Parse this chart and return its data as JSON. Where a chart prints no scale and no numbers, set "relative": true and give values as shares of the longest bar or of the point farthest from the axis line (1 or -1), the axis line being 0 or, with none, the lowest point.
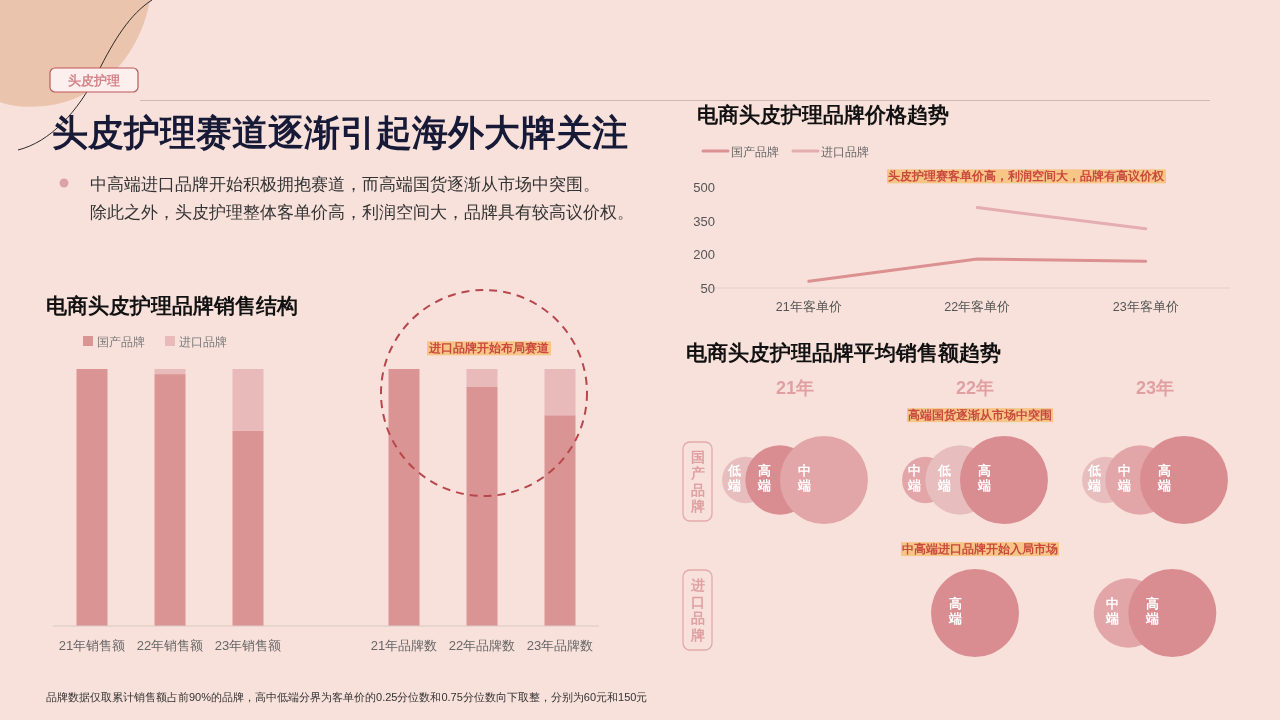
{
  "chart_data": [
    {
      "type": "other",
      "title": "头皮护理赛道逐渐引起海外大牌关注",
      "annotations": [
        "头皮护理",
        "中高端进口品牌开始积极拥抱赛道，而高端国货逐渐从市场中突围。",
        "除此之外，头皮护理整体客单价高，利润空间大，品牌具有较高议价权。",
        "品牌数据仅取累计销售额占前90%的品牌，高中低端分界为客单价的0.25分位数和0.75分位数向下取整，分别为60元和150元"
      ]
    },
    {
      "type": "bar",
      "title": "电商头皮护理品牌销售结构",
      "categories": [
        "21年销售额",
        "22年销售额",
        "23年销售额",
        null,
        "21年品牌数",
        "22年品牌数",
        "23年品牌数"
      ],
      "stacked": true,
      "relative": true,
      "legend": "top left",
      "series": [
        {
          "name": "国产品牌",
          "color": "#da9494",
          "values": [
            1,
            0.98,
            0.76,
            null,
            1,
            0.93,
            0.82
          ]
        },
        {
          "name": "进口品牌",
          "color": "#e8baba",
          "values": [
            0,
            0.02,
            0.24,
            null,
            0,
            0.07,
            0.18
          ]
        }
      ],
      "annotations": [
        "进口品牌开始布局赛道"
      ]
    },
    {
      "type": "line",
      "title": "电商头皮护理品牌价格趋势",
      "categories": [
        "21年客单价",
        "22年客单价",
        "23年客单价"
      ],
      "ylim": [
        50,
        500
      ],
      "yticks": [
        50,
        200,
        350,
        500
      ],
      "legend": "top left",
      "series": [
        {
          "name": "国产品牌",
          "color": "#db9092",
          "values": [
            80,
            180,
            170
          ]
        },
        {
          "name": "进口品牌",
          "color": "#e4adb0",
          "values": [
            null,
            410,
            315
          ]
        }
      ],
      "annotations": [
        "头皮护理赛客单价高，利润空间大，品牌有高议价权"
      ]
    },
    {
      "type": "bubble",
      "title": "电商头皮护理品牌平均销售额趋势",
      "categories": [
        "21年",
        "22年",
        "23年"
      ],
      "relative": true,
      "series": [
        {
          "name": "低端",
          "color": "#e8bdbe",
          "x": [
            "21年",
            "22年",
            "23年"
          ],
          "values": [
            1,
            1,
            1
          ],
          "sizes": [
            0.28,
            0.62,
            0.28
          ]
        },
        {
          "name": "中端",
          "color": "#e2a6a8",
          "x": [
            "21年",
            "22年",
            "23年",
            "23年"
          ],
          "values": [
            1,
            1,
            1,
            0
          ],
          "sizes": [
            1,
            0.28,
            0.62,
            0.62
          ]
        },
        {
          "name": "高端",
          "color": "#d98d90",
          "x": [
            "21年",
            "22年",
            "23年",
            "22年",
            "23年"
          ],
          "values": [
            1,
            1,
            1,
            0,
            0
          ],
          "sizes": [
            0.62,
            1,
            1,
            1,
            1
          ]
        }
      ],
      "annotations": [
        "国产品牌",
        "进口品牌",
        "高端国货逐渐从市场中突围",
        "中高端进口品牌开始入局市场"
      ]
    }
  ]
}
